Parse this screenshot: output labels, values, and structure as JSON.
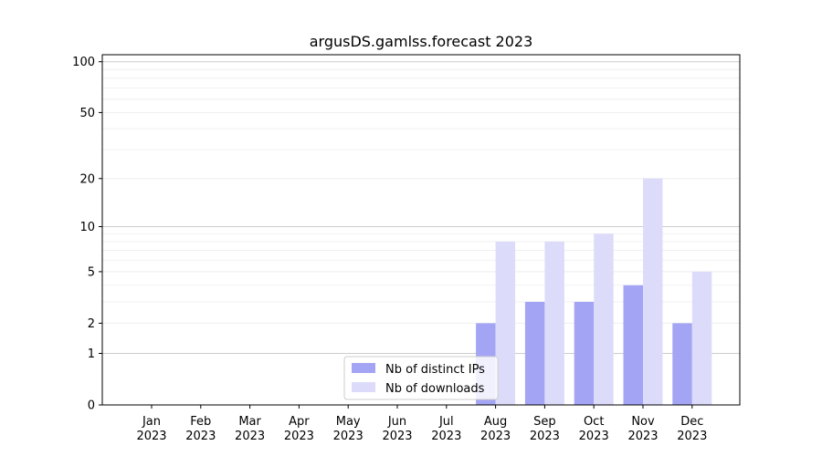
{
  "chart_data": {
    "type": "bar",
    "title": "argusDS.gamlss.forecast 2023",
    "xlabel": "",
    "ylabel": "",
    "yscale": "log1p",
    "ylim": [
      0,
      110
    ],
    "yticks": [
      0,
      1,
      2,
      5,
      10,
      20,
      50,
      100
    ],
    "grid": true,
    "legend_position": "bottom-center",
    "categories": [
      [
        "Jan",
        "2023"
      ],
      [
        "Feb",
        "2023"
      ],
      [
        "Mar",
        "2023"
      ],
      [
        "Apr",
        "2023"
      ],
      [
        "May",
        "2023"
      ],
      [
        "Jun",
        "2023"
      ],
      [
        "Jul",
        "2023"
      ],
      [
        "Aug",
        "2023"
      ],
      [
        "Sep",
        "2023"
      ],
      [
        "Oct",
        "2023"
      ],
      [
        "Nov",
        "2023"
      ],
      [
        "Dec",
        "2023"
      ]
    ],
    "series": [
      {
        "name": "Nb of distinct IPs",
        "color": "#a4a4f5",
        "values": [
          0,
          0,
          0,
          0,
          0,
          0,
          0,
          2,
          3,
          3,
          4,
          2
        ]
      },
      {
        "name": "Nb of downloads",
        "color": "#dcdcfa",
        "values": [
          0,
          0,
          0,
          0,
          0,
          0,
          0,
          8,
          8,
          9,
          20,
          5
        ]
      }
    ]
  }
}
